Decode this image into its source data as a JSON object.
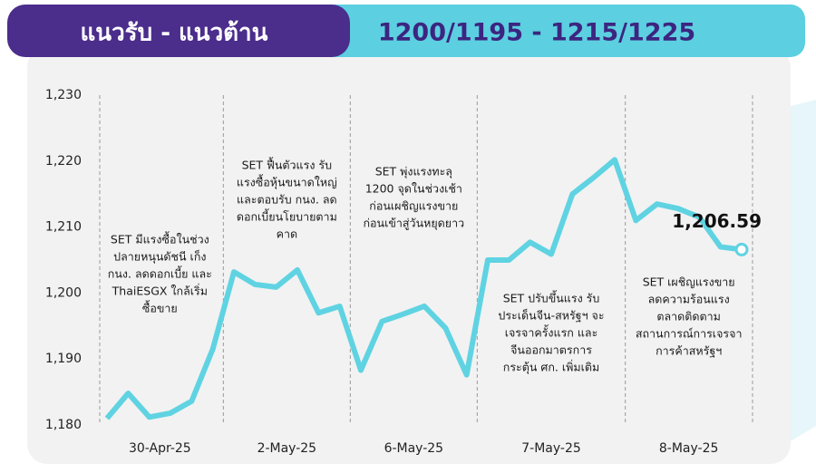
{
  "chart_data": {
    "type": "line",
    "title": "แนวรับ - แนวต้าน",
    "subtitle": "1200/1195 - 1215/1225",
    "categories": [
      "30-Apr-25",
      null,
      null,
      null,
      null,
      null,
      "2-May-25",
      null,
      null,
      null,
      null,
      null,
      "6-May-25",
      null,
      null,
      null,
      null,
      null,
      "7-May-25",
      null,
      null,
      null,
      null,
      null,
      null,
      "8-May-25",
      null,
      null,
      null,
      null,
      null
    ],
    "series": [
      {
        "color": "#5fd3e2",
        "values": [
          1181,
          1184.8,
          1181.2,
          1181.8,
          1183.6,
          1191.5,
          1203.2,
          1201.3,
          1200.9,
          1203.5,
          1197,
          1198,
          1188.3,
          1195.7,
          1196.8,
          1198,
          1194.7,
          1187.6,
          1205,
          1205,
          1207.7,
          1205.9,
          1215,
          1217.5,
          1220.2,
          1211,
          1213.5,
          1212.8,
          1211.5,
          1207,
          1206.59
        ],
        "value_labels": [
          null,
          null,
          null,
          null,
          null,
          null,
          null,
          null,
          null,
          null,
          null,
          null,
          null,
          null,
          null,
          null,
          null,
          null,
          null,
          null,
          null,
          null,
          null,
          null,
          null,
          null,
          null,
          null,
          null,
          null,
          "1,206.59"
        ]
      }
    ],
    "ylim": [
      1180,
      1230
    ],
    "yticks": [
      {
        "value": 1180,
        "label": "1,180"
      },
      {
        "value": 1190,
        "label": "1,190"
      },
      {
        "value": 1200,
        "label": "1,200"
      },
      {
        "value": 1210,
        "label": "1,210"
      },
      {
        "value": 1220,
        "label": "1,220"
      },
      {
        "value": 1230,
        "label": "1,230"
      }
    ],
    "annotations": [
      [
        "SET มีแรงซื้อในช่วง",
        "ปลายหนุนดัชนี เก็ง",
        "กนง. ลดดอกเบี้ย และ",
        "ThaiESGX ใกล้เริ่ม",
        "ซื้อขาย"
      ],
      [
        "SET ฟื้นตัวแรง รับ",
        "แรงซื้อหุ้นขนาดใหญ่",
        "และตอบรับ กนง. ลด",
        "ดอกเบี้ยนโยบายตาม",
        "คาด"
      ],
      [
        "SET พุ่งแรงทะลุ",
        "1200 จุดในช่วงเช้า",
        "ก่อนเผชิญแรงขาย",
        "ก่อนเข้าสู่วันหยุดยาว"
      ],
      [
        "SET ปรับขึ้นแรง รับ",
        "ประเด็นจีน-สหรัฐฯ จะ",
        "เจรจาครั้งแรก และ",
        "จีนออกมาตรการ",
        "กระตุ้น ศก. เพิ่มเติม"
      ],
      [
        "SET เผชิญแรงขาย",
        "ลดความร้อนแรง",
        "ตลาดติดตาม",
        "สถานการณ์การเจรจา",
        "การค้าสหรัฐฯ"
      ]
    ]
  }
}
